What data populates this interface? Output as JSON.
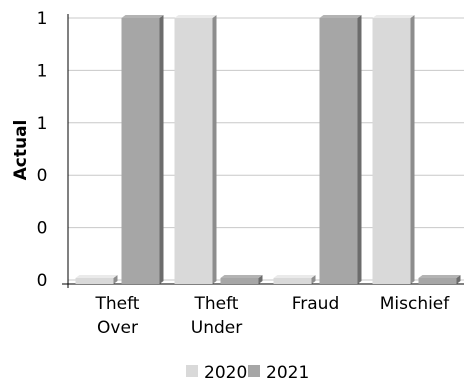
{
  "chart_data": {
    "type": "bar",
    "title": "",
    "xlabel": "",
    "ylabel": "Actual",
    "categories": [
      [
        "Theft",
        "Over"
      ],
      [
        "Theft",
        "Under"
      ],
      [
        "Fraud"
      ],
      [
        "Mischief"
      ]
    ],
    "y_tick_labels": [
      "0",
      "0",
      "0",
      "1",
      "1",
      "1"
    ],
    "ylim": [
      0,
      1
    ],
    "grid": true,
    "legend_position": "bottom",
    "series": [
      {
        "name": "2020",
        "values": [
          0,
          1,
          0,
          1
        ],
        "color": "#d9d9d9"
      },
      {
        "name": "2021",
        "values": [
          1,
          0,
          1,
          0
        ],
        "color": "#a6a6a6"
      }
    ]
  }
}
